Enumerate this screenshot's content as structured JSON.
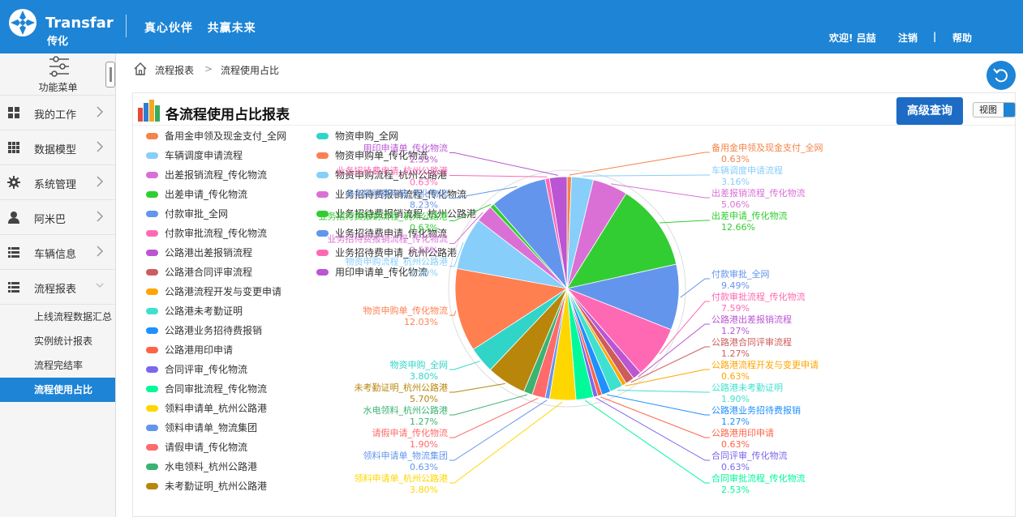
{
  "header": {
    "brand_en": "Transfar",
    "brand_cn": "传化",
    "slogan": "真心伙伴   共赢未来",
    "welcome": "欢迎! 吕喆",
    "logout": "注销",
    "divider": "|",
    "help": "帮助",
    "colors": {
      "bar": "#1d84d6"
    }
  },
  "sidebar": {
    "function_menu": "功能菜单",
    "items": [
      {
        "label": "我的工作",
        "icon": "grid-icon"
      },
      {
        "label": "数据模型",
        "icon": "dots-grid-icon"
      },
      {
        "label": "系统管理",
        "icon": "gear-icon"
      },
      {
        "label": "阿米巴",
        "icon": "user-icon"
      },
      {
        "label": "车辆信息",
        "icon": "list-icon"
      },
      {
        "label": "流程报表",
        "icon": "list-icon"
      }
    ],
    "subitems": [
      "上线流程数据汇总",
      "实例统计报表",
      "流程完结率",
      "流程使用占比"
    ]
  },
  "breadcrumb": {
    "root": "流程报表",
    "sep": ">",
    "current": "流程使用占比"
  },
  "panel": {
    "title": "各流程使用占比报表",
    "query_button": "高级查询",
    "view_select": "视图"
  },
  "chart_data": {
    "type": "pie",
    "title": "各流程使用占比报表",
    "legend_position": "left",
    "slices": [
      {
        "name": "备用金申领及现金支付_全网",
        "value": 0.63,
        "color": "#f4844a"
      },
      {
        "name": "车辆调度申请流程",
        "value": 3.16,
        "color": "#87cefa"
      },
      {
        "name": "出差报销流程_传化物流",
        "value": 5.06,
        "color": "#da70d6"
      },
      {
        "name": "出差申请_传化物流",
        "value": 12.66,
        "color": "#32cd32"
      },
      {
        "name": "付款审批_全网",
        "value": 9.49,
        "color": "#6495ed"
      },
      {
        "name": "付款审批流程_传化物流",
        "value": 7.59,
        "color": "#ff69b4"
      },
      {
        "name": "公路港出差报销流程",
        "value": 1.27,
        "color": "#ba55d3"
      },
      {
        "name": "公路港合同评审流程",
        "value": 1.27,
        "color": "#cd5c5c"
      },
      {
        "name": "公路港流程开发与变更申请",
        "value": 0.63,
        "color": "#ffa500"
      },
      {
        "name": "公路港未考勤证明",
        "value": 1.9,
        "color": "#40e0d0"
      },
      {
        "name": "公路港业务招待费报销",
        "value": 1.27,
        "color": "#1e90ff"
      },
      {
        "name": "公路港用印申请",
        "value": 0.63,
        "color": "#ff6347"
      },
      {
        "name": "合同评审_传化物流",
        "value": 0.63,
        "color": "#7b68ee"
      },
      {
        "name": "合同审批流程_传化物流",
        "value": 2.53,
        "color": "#00fa9a"
      },
      {
        "name": "领料申请单_杭州公路港",
        "value": 3.8,
        "color": "#ffd700"
      },
      {
        "name": "领料申请单_物流集团",
        "value": 0.63,
        "color": "#6495ed"
      },
      {
        "name": "请假申请_传化物流",
        "value": 1.9,
        "color": "#ff6a6a"
      },
      {
        "name": "水电领料_杭州公路港",
        "value": 1.27,
        "color": "#3cb371"
      },
      {
        "name": "未考勤证明_杭州公路港",
        "value": 5.7,
        "color": "#b8860b"
      },
      {
        "name": "物资申购_全网",
        "value": 3.8,
        "color": "#30d5c8"
      },
      {
        "name": "物资申购单_传化物流",
        "value": 12.03,
        "color": "#ff7f50"
      },
      {
        "name": "物资申购流程_杭州公路港",
        "value": 7.59,
        "color": "#87cefa"
      },
      {
        "name": "业务招待费报销流程_传化物流",
        "value": 2.53,
        "color": "#da70d6"
      },
      {
        "name": "业务招待费报销流程_杭州公路港",
        "value": 0.63,
        "color": "#32cd32"
      },
      {
        "name": "业务招待费申请_传化物流",
        "value": 8.23,
        "color": "#6495ed"
      },
      {
        "name": "业务招待费申请_杭州公路港",
        "value": 0.63,
        "color": "#ff69b4"
      },
      {
        "name": "用印申请单_传化物流",
        "value": 2.53,
        "color": "#ba55d3"
      }
    ],
    "label_values": [
      "0.63%",
      "3.16%",
      "5.06%",
      "12.66%",
      "9.49%",
      "7.59%",
      "1.27%",
      "1.27%",
      "0.63%",
      "1.90%",
      "1.27%",
      "0.63%",
      "0.63%",
      "2.53%",
      "3.80%",
      "0.63%",
      "1.90%",
      "1.27%",
      "5.70%",
      "3.80%",
      "12.03%",
      "7.59%",
      "2.53%",
      "0.63%",
      "8.23%",
      "0.63%",
      "2.53%"
    ],
    "legend": [
      "备用金申领及现金支付_全网",
      "车辆调度申请流程",
      "出差报销流程_传化物流",
      "出差申请_传化物流",
      "付款审批_全网",
      "付款审批流程_传化物流",
      "公路港出差报销流程",
      "公路港合同评审流程",
      "公路港流程开发与变更申请",
      "公路港未考勤证明",
      "公路港业务招待费报销",
      "公路港用印申请",
      "合同评审_传化物流",
      "合同审批流程_传化物流",
      "领料申请单_杭州公路港",
      "领料申请单_物流集团",
      "请假申请_传化物流",
      "水电领料_杭州公路港",
      "未考勤证明_杭州公路港",
      "物资申购_全网",
      "物资申购单_传化物流",
      "物资申购流程_杭州公路港",
      "业务招待费报销流程_传化物流",
      "业务招待费报销流程_杭州公路港",
      "业务招待费申请_传化物流",
      "业务招待费申请_杭州公路港",
      "用印申请单_传化物流"
    ]
  }
}
